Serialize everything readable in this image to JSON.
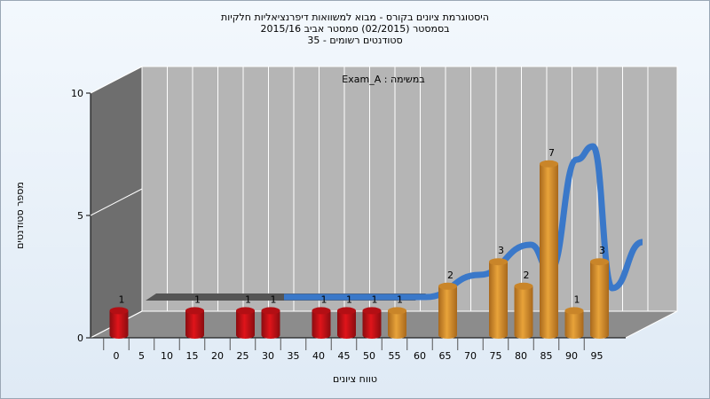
{
  "header": {
    "title_line1": "היסטוגרמת ציונים בקורס - מבוא למשוואות דיפרנציאליות חלקיות",
    "title_line2": "בסמסטר  (02/2015)  סמסטר אביב 2015/16",
    "title_line3": "סטודנטים רשומים - 35"
  },
  "colors": {
    "fail_bar": "#e0141a",
    "pass_bar": "#e8a33a",
    "curve": "#3a78c9",
    "back_wall": "#b5b5b5",
    "side_wall": "#6e6e6e",
    "floor": "#8c8c8c"
  },
  "chart_data": {
    "type": "bar",
    "subtitle": "Exam_A : במשימה",
    "xlabel": "טווח ציונים",
    "ylabel": "מספר סטודנטים",
    "ylim": [
      0,
      10
    ],
    "y_ticks": [
      "0",
      "5",
      "10"
    ],
    "categories": [
      "0",
      "5",
      "10",
      "15",
      "25",
      "30",
      "35",
      "40",
      "45",
      "50",
      "55",
      "60",
      "65",
      "70",
      "75",
      "80",
      "85",
      "90",
      "95"
    ],
    "x_tick_labels": [
      "0",
      "5",
      "10",
      "15",
      "20",
      "25",
      "30",
      "35",
      "40",
      "45",
      "50",
      "55",
      "60",
      "65",
      "70",
      "75",
      "80",
      "85",
      "90",
      "95"
    ],
    "bars": [
      {
        "x": 0,
        "value": 1,
        "group": "fail"
      },
      {
        "x": 15,
        "value": 1,
        "group": "fail"
      },
      {
        "x": 25,
        "value": 1,
        "group": "fail"
      },
      {
        "x": 30,
        "value": 1,
        "group": "fail"
      },
      {
        "x": 40,
        "value": 1,
        "group": "fail"
      },
      {
        "x": 45,
        "value": 1,
        "group": "fail"
      },
      {
        "x": 50,
        "value": 1,
        "group": "fail"
      },
      {
        "x": 55,
        "value": 1,
        "group": "pass"
      },
      {
        "x": 65,
        "value": 2,
        "group": "pass"
      },
      {
        "x": 75,
        "value": 3,
        "group": "pass"
      },
      {
        "x": 80,
        "value": 2,
        "group": "pass"
      },
      {
        "x": 85,
        "value": 7,
        "group": "pass"
      },
      {
        "x": 90,
        "value": 1,
        "group": "pass"
      },
      {
        "x": 95,
        "value": 3,
        "group": "pass"
      }
    ]
  }
}
